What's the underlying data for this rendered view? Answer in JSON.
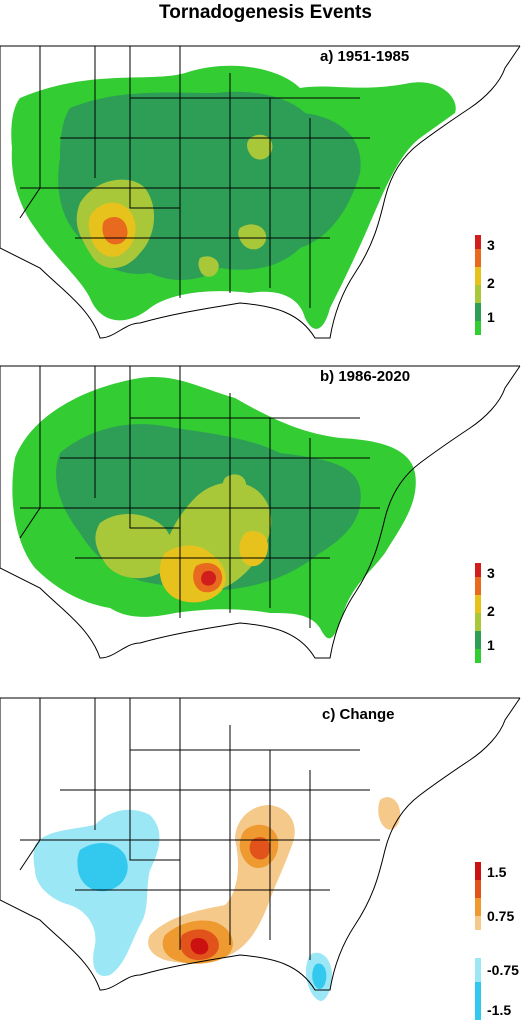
{
  "title": "Tornadogenesis Events",
  "panels": [
    {
      "label": "a) 1951-1985",
      "legend": [
        "3",
        "2",
        "1"
      ]
    },
    {
      "label": "b) 1986-2020",
      "legend": [
        "3",
        "2",
        "1"
      ]
    },
    {
      "label": "c) Change",
      "legend": [
        "1.5",
        "0.75",
        "-0.75",
        "-1.5"
      ]
    }
  ],
  "colors": {
    "level1": "#33cc33",
    "level2": "#2e9e57",
    "level3": "#a8c83a",
    "level4": "#e8c21c",
    "level5": "#e86a1e",
    "level6": "#d21d1d",
    "pos1": "#f5c98a",
    "pos2": "#ee9a30",
    "pos3": "#e2531c",
    "pos4": "#cc1111",
    "neg1": "#9be7f5",
    "neg2": "#33c9ee"
  }
}
